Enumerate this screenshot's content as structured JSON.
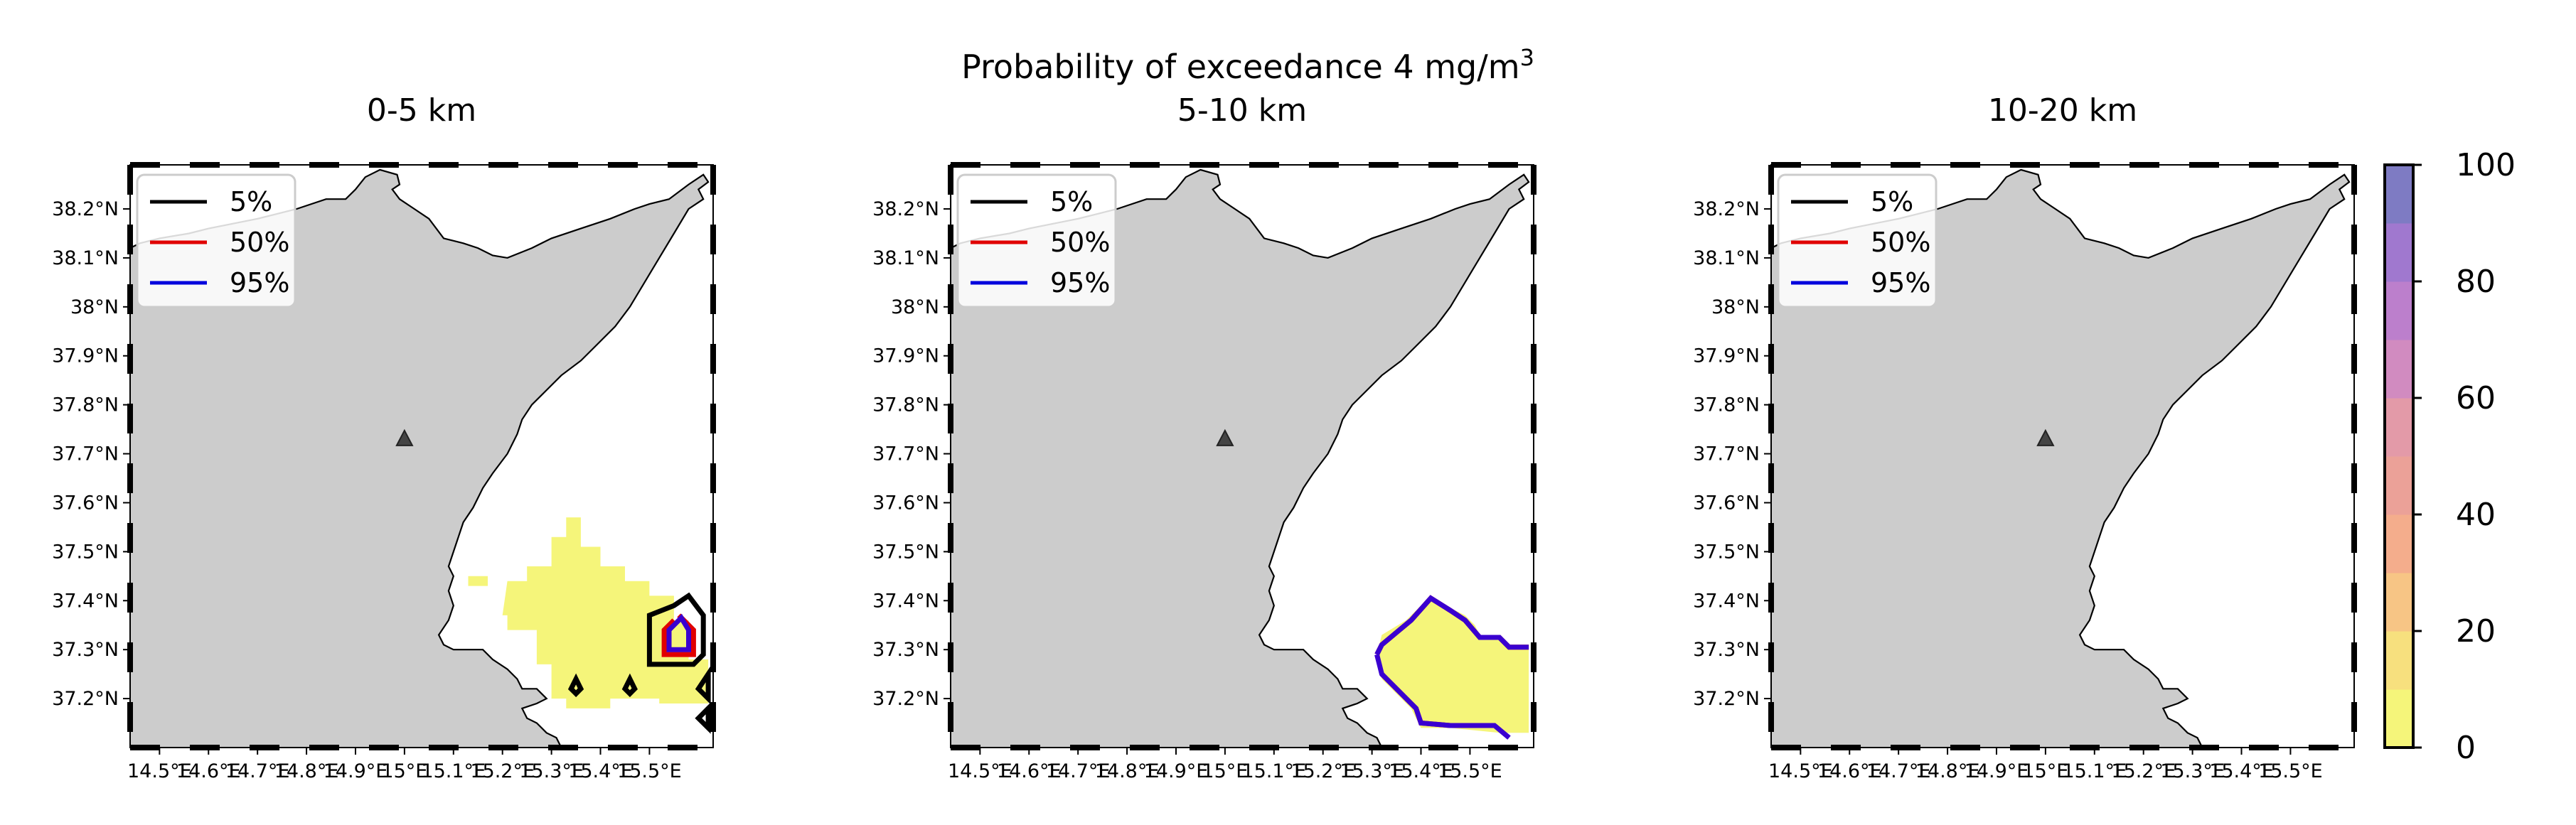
{
  "figure": {
    "title_main": "Probability of exceedance 4 mg/m",
    "title_superscript": "3"
  },
  "chart_data": {
    "type": "heatmap",
    "x_ticks": [
      "14.5°E",
      "14.6°E",
      "14.7°E",
      "14.8°E",
      "14.9°E",
      "15°E",
      "15.1°E",
      "15.2°E",
      "15.3°E",
      "15.4°E",
      "15.5°E"
    ],
    "y_ticks": [
      "37.2°N",
      "37.3°N",
      "37.4°N",
      "37.5°N",
      "37.6°N",
      "37.7°N",
      "37.8°N",
      "37.9°N",
      "38°N",
      "38.1°N",
      "38.2°N"
    ],
    "lon_range": [
      14.44,
      15.63
    ],
    "lat_range": [
      37.1,
      38.29
    ],
    "vent": {
      "lon": 15.0,
      "lat": 37.73
    },
    "legend": [
      {
        "label": "5%",
        "color": "#000000"
      },
      {
        "label": "50%",
        "color": "#e00000"
      },
      {
        "label": "95%",
        "color": "#0000dd"
      }
    ],
    "land_color": "#cccccc",
    "colorbar": {
      "ticks": [
        "0",
        "20",
        "40",
        "60",
        "80",
        "100"
      ],
      "range": [
        0,
        100
      ],
      "colors": [
        "#f5f57a",
        "#f7e07e",
        "#f7c585",
        "#f4ad8c",
        "#eba198",
        "#e39aa8",
        "#d18bc0",
        "#bc7fcc",
        "#a078cf",
        "#7e7bc3"
      ]
    },
    "panels": [
      {
        "title": "0-5 km",
        "fill_value": 5,
        "fill_polygon": [
          [
            15.21,
            37.44
          ],
          [
            15.25,
            37.44
          ],
          [
            15.25,
            37.47
          ],
          [
            15.3,
            37.47
          ],
          [
            15.3,
            37.53
          ],
          [
            15.33,
            37.53
          ],
          [
            15.33,
            37.57
          ],
          [
            15.36,
            37.57
          ],
          [
            15.36,
            37.51
          ],
          [
            15.4,
            37.51
          ],
          [
            15.4,
            37.47
          ],
          [
            15.45,
            37.47
          ],
          [
            15.45,
            37.44
          ],
          [
            15.5,
            37.44
          ],
          [
            15.5,
            37.41
          ],
          [
            15.55,
            37.41
          ],
          [
            15.55,
            37.36
          ],
          [
            15.58,
            37.36
          ],
          [
            15.58,
            37.28
          ],
          [
            15.62,
            37.28
          ],
          [
            15.62,
            37.19
          ],
          [
            15.52,
            37.19
          ],
          [
            15.52,
            37.2
          ],
          [
            15.42,
            37.2
          ],
          [
            15.42,
            37.18
          ],
          [
            15.33,
            37.18
          ],
          [
            15.33,
            37.2
          ],
          [
            15.3,
            37.2
          ],
          [
            15.3,
            37.27
          ],
          [
            15.27,
            37.27
          ],
          [
            15.27,
            37.34
          ],
          [
            15.21,
            37.34
          ],
          [
            15.21,
            37.37
          ],
          [
            15.2,
            37.37
          ]
        ],
        "extra_fill": [
          [
            15.13,
            37.43
          ],
          [
            15.17,
            37.43
          ],
          [
            15.17,
            37.45
          ],
          [
            15.13,
            37.45
          ]
        ],
        "contours_5": [
          [
            [
              15.55,
              37.39
            ],
            [
              15.5,
              37.37
            ],
            [
              15.5,
              37.27
            ],
            [
              15.59,
              37.27
            ],
            [
              15.61,
              37.29
            ],
            [
              15.61,
              37.37
            ],
            [
              15.58,
              37.41
            ]
          ],
          [
            [
              15.35,
              37.24
            ],
            [
              15.36,
              37.22
            ],
            [
              15.35,
              37.21
            ],
            [
              15.34,
              37.22
            ]
          ],
          [
            [
              15.46,
              37.24
            ],
            [
              15.47,
              37.22
            ],
            [
              15.46,
              37.21
            ],
            [
              15.45,
              37.22
            ]
          ],
          [
            [
              15.62,
              37.25
            ],
            [
              15.6,
              37.22
            ],
            [
              15.62,
              37.2
            ]
          ],
          [
            [
              15.62,
              37.18
            ],
            [
              15.6,
              37.16
            ],
            [
              15.62,
              37.14
            ]
          ]
        ],
        "contours_50": [
          [
            [
              15.55,
              37.36
            ],
            [
              15.53,
              37.34
            ],
            [
              15.53,
              37.29
            ],
            [
              15.59,
              37.29
            ],
            [
              15.59,
              37.34
            ],
            [
              15.56,
              37.37
            ]
          ]
        ],
        "contours_95": [
          [
            [
              15.555,
              37.355
            ],
            [
              15.54,
              37.34
            ],
            [
              15.54,
              37.3
            ],
            [
              15.58,
              37.3
            ],
            [
              15.58,
              37.34
            ],
            [
              15.565,
              37.365
            ]
          ]
        ]
      },
      {
        "title": "5-10 km",
        "fill_value": 5,
        "fill_polygon": [
          [
            15.32,
            37.33
          ],
          [
            15.37,
            37.36
          ],
          [
            15.42,
            37.41
          ],
          [
            15.45,
            37.39
          ],
          [
            15.49,
            37.37
          ],
          [
            15.51,
            37.35
          ],
          [
            15.52,
            37.33
          ],
          [
            15.56,
            37.33
          ],
          [
            15.58,
            37.31
          ],
          [
            15.62,
            37.31
          ],
          [
            15.62,
            37.13
          ],
          [
            15.56,
            37.13
          ],
          [
            15.46,
            37.14
          ],
          [
            15.4,
            37.14
          ],
          [
            15.38,
            37.18
          ],
          [
            15.32,
            37.24
          ],
          [
            15.31,
            37.29
          ]
        ],
        "extra_fill": [],
        "contours_5": [],
        "contours_50": [
          [
            [
              15.31,
              37.29
            ],
            [
              15.32,
              37.31
            ],
            [
              15.38,
              37.36
            ],
            [
              15.42,
              37.405
            ],
            [
              15.46,
              37.38
            ],
            [
              15.49,
              37.36
            ],
            [
              15.52,
              37.325
            ],
            [
              15.56,
              37.325
            ],
            [
              15.58,
              37.305
            ],
            [
              15.62,
              37.305
            ]
          ],
          [
            [
              15.55,
              37.145
            ],
            [
              15.46,
              37.145
            ],
            [
              15.4,
              37.15
            ],
            [
              15.39,
              37.18
            ],
            [
              15.32,
              37.25
            ]
          ]
        ],
        "contours_95": [
          [
            [
              15.31,
              37.29
            ],
            [
              15.32,
              37.31
            ],
            [
              15.38,
              37.36
            ],
            [
              15.42,
              37.405
            ],
            [
              15.46,
              37.38
            ],
            [
              15.49,
              37.36
            ],
            [
              15.52,
              37.325
            ],
            [
              15.56,
              37.325
            ],
            [
              15.58,
              37.305
            ],
            [
              15.62,
              37.305
            ]
          ],
          [
            [
              15.31,
              37.29
            ],
            [
              15.32,
              37.25
            ],
            [
              15.39,
              37.18
            ],
            [
              15.4,
              37.15
            ],
            [
              15.46,
              37.145
            ],
            [
              15.55,
              37.145
            ],
            [
              15.58,
              37.12
            ]
          ]
        ]
      },
      {
        "title": "10-20 km",
        "fill_value": 0,
        "fill_polygon": [],
        "extra_fill": [],
        "contours_5": [],
        "contours_50": [],
        "contours_95": []
      }
    ]
  }
}
